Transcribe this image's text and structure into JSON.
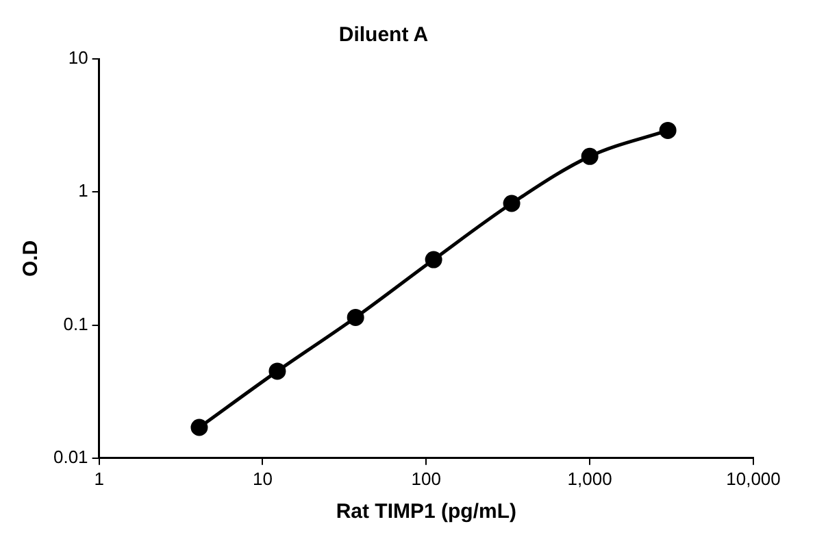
{
  "chart_data": {
    "type": "line",
    "title": "Diluent A",
    "xlabel": "Rat TIMP1 (pg/mL)",
    "ylabel": "O.D",
    "log": "xy",
    "grid": false,
    "legend": false,
    "marker": "circle",
    "line_style": "solid",
    "x": [
      4.1,
      12.3,
      37,
      111,
      333,
      1000,
      3000
    ],
    "series": [
      {
        "color": "#000000",
        "values": [
          0.017,
          0.045,
          0.114,
          0.31,
          0.82,
          1.85,
          2.9
        ]
      }
    ],
    "xlim": [
      1,
      10000
    ],
    "xticks": [
      1,
      10,
      100,
      {
        "value": 1000,
        "label": "1,000"
      },
      {
        "value": 10000,
        "label": "10,000"
      }
    ],
    "ylim": [
      0.01,
      10
    ],
    "yticks": [
      0.01,
      0.1,
      1,
      10
    ]
  }
}
